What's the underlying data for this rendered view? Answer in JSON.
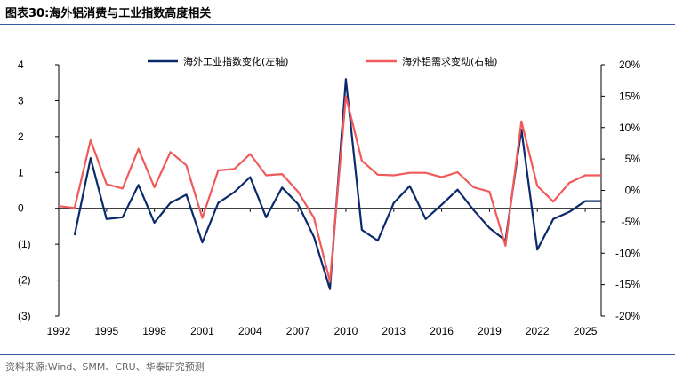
{
  "title": "图表30:海外铝消费与工业指数高度相关",
  "source": "资料来源:Wind、SMM、CRU、华泰研究预测",
  "chart_data": {
    "type": "line",
    "title": "图表30:海外铝消费与工业指数高度相关",
    "x": [
      1992,
      1993,
      1994,
      1995,
      1996,
      1997,
      1998,
      1999,
      2000,
      2001,
      2002,
      2003,
      2004,
      2005,
      2006,
      2007,
      2008,
      2009,
      2010,
      2011,
      2012,
      2013,
      2014,
      2015,
      2016,
      2017,
      2018,
      2019,
      2020,
      2021,
      2022,
      2023,
      2024,
      2025,
      2026
    ],
    "x_ticks": [
      1992,
      1995,
      1998,
      2001,
      2004,
      2007,
      2010,
      2013,
      2016,
      2019,
      2022,
      2025
    ],
    "x_tick_labels": [
      "1992",
      "1995",
      "1998",
      "2001",
      "2004",
      "2007",
      "2010",
      "2013",
      "2016",
      "2019",
      "2022",
      "2025"
    ],
    "left_axis": {
      "ylim": [
        -3,
        4
      ],
      "ticks": [
        4,
        3,
        2,
        1,
        0,
        -1,
        -2,
        -3
      ],
      "tick_labels": [
        "4",
        "3",
        "2",
        "1",
        "0",
        "(1)",
        "(2)",
        "(3)"
      ]
    },
    "right_axis": {
      "ylim": [
        -20,
        20
      ],
      "ticks": [
        20,
        15,
        10,
        5,
        0,
        -5,
        -10,
        -15,
        -20
      ],
      "tick_labels": [
        "20%",
        "15%",
        "10%",
        "5%",
        "0%",
        "-5%",
        "-10%",
        "-15%",
        "-20%"
      ]
    },
    "series": [
      {
        "name": "海外工业指数变化(左轴)",
        "axis": "left",
        "color": "#0b2a6b",
        "values": [
          null,
          -0.75,
          1.4,
          -0.3,
          -0.25,
          0.65,
          -0.4,
          0.15,
          0.38,
          -0.95,
          0.15,
          0.45,
          0.87,
          -0.25,
          0.58,
          0.12,
          -0.8,
          -2.25,
          3.6,
          -0.6,
          -0.9,
          0.15,
          0.62,
          -0.3,
          0.1,
          0.52,
          -0.05,
          -0.55,
          -0.9,
          2.2,
          -1.15,
          -0.3,
          -0.1,
          0.2,
          0.2
        ]
      },
      {
        "name": "海外铝需求变动(右轴)",
        "axis": "right",
        "color": "#f05a5a",
        "values": [
          -2.5,
          -2.8,
          8,
          1,
          0.3,
          6.6,
          0.5,
          6.1,
          4,
          -4.4,
          3.2,
          3.4,
          5.8,
          2.4,
          2.6,
          -0.2,
          -4.4,
          -14.5,
          15,
          4.7,
          2.5,
          2.4,
          2.8,
          2.8,
          2.1,
          2.9,
          0.5,
          -0.2,
          -8.8,
          11,
          0.7,
          -1.8,
          1.2,
          2.4,
          2.4
        ]
      }
    ],
    "legend": "top-center",
    "grid": false
  }
}
